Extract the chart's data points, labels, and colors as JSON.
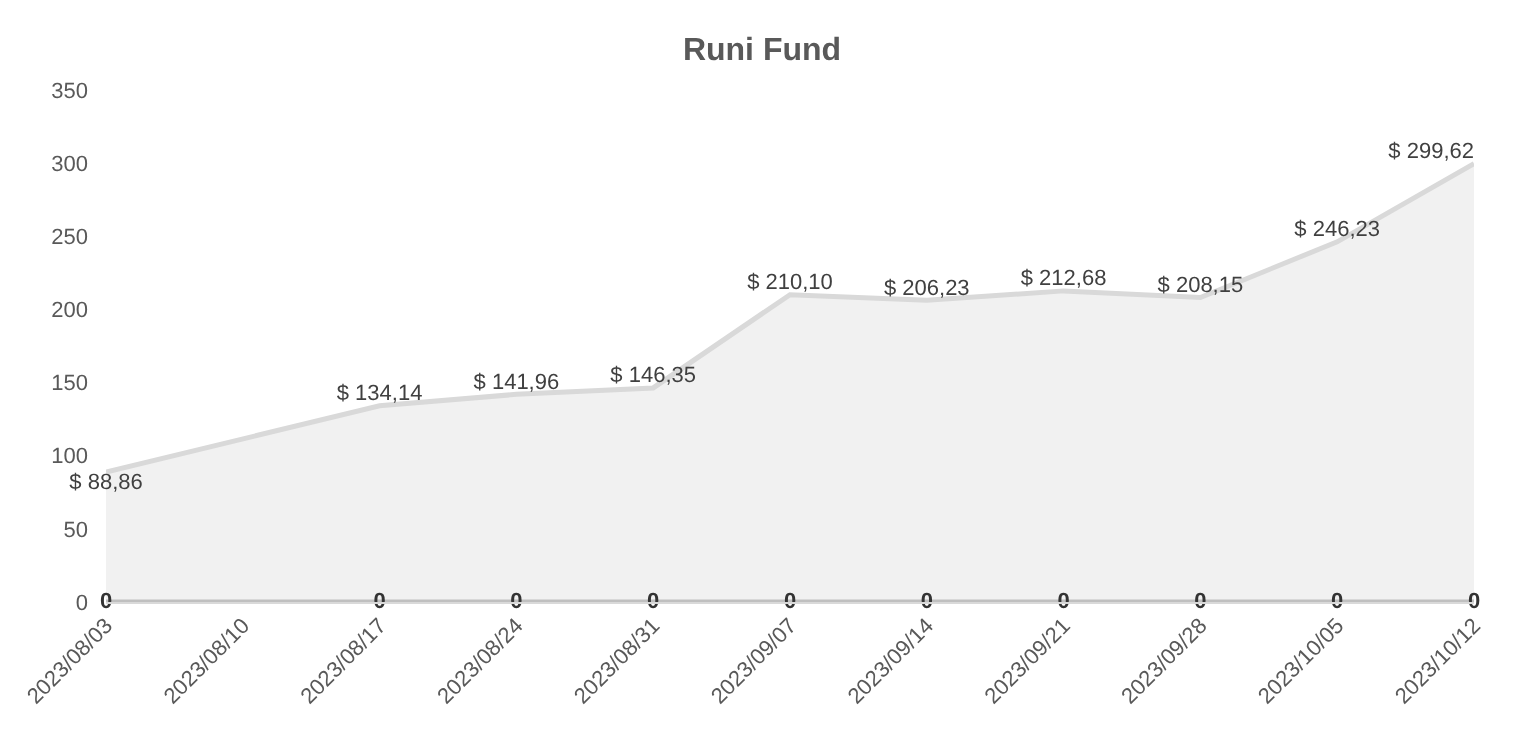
{
  "chart_data": {
    "type": "area",
    "title": "Runi Fund",
    "x": [
      "2023-08-03",
      "2023-08-17",
      "2023-08-24",
      "2023-08-31",
      "2023-09-07",
      "2023-09-14",
      "2023-09-21",
      "2023-09-28",
      "2023-10-05",
      "2023-10-12"
    ],
    "series": [
      {
        "color": "#d9d9d9",
        "values": [
          88.86,
          134.14,
          141.96,
          146.35,
          210.1,
          206.23,
          212.68,
          208.15,
          246.23,
          299.62
        ],
        "value_labels": [
          "$ 88,86",
          "$ 134,14",
          "$ 141,96",
          "$ 146,35",
          "$ 210,10",
          "$ 206,23",
          "$ 212,68",
          "$ 208,15",
          "$ 246,23",
          "$ 299,62"
        ]
      },
      {
        "type": "line",
        "color": "#bfbfbf",
        "values": [
          0,
          0,
          0,
          0,
          0,
          0,
          0,
          0,
          0,
          0
        ],
        "value_labels": [
          "0",
          "0",
          "0",
          "0",
          "0",
          "0",
          "0",
          "0",
          "0",
          "0"
        ]
      }
    ],
    "xlim": [
      "2023-08-03",
      "2023-10-12"
    ],
    "xticks": [
      {
        "value": "2023-08-03",
        "label": "2023/08/03"
      },
      {
        "value": "2023-08-10",
        "label": "2023/08/10"
      },
      {
        "value": "2023-08-17",
        "label": "2023/08/17"
      },
      {
        "value": "2023-08-24",
        "label": "2023/08/24"
      },
      {
        "value": "2023-08-31",
        "label": "2023/08/31"
      },
      {
        "value": "2023-09-07",
        "label": "2023/09/07"
      },
      {
        "value": "2023-09-14",
        "label": "2023/09/14"
      },
      {
        "value": "2023-09-21",
        "label": "2023/09/21"
      },
      {
        "value": "2023-09-28",
        "label": "2023/09/28"
      },
      {
        "value": "2023-10-05",
        "label": "2023/10/05"
      },
      {
        "value": "2023-10-12",
        "label": "2023/10/12"
      }
    ],
    "ylim": [
      0,
      350
    ],
    "yticks": [
      0,
      50,
      100,
      150,
      200,
      250,
      300,
      350
    ],
    "grid": false
  }
}
